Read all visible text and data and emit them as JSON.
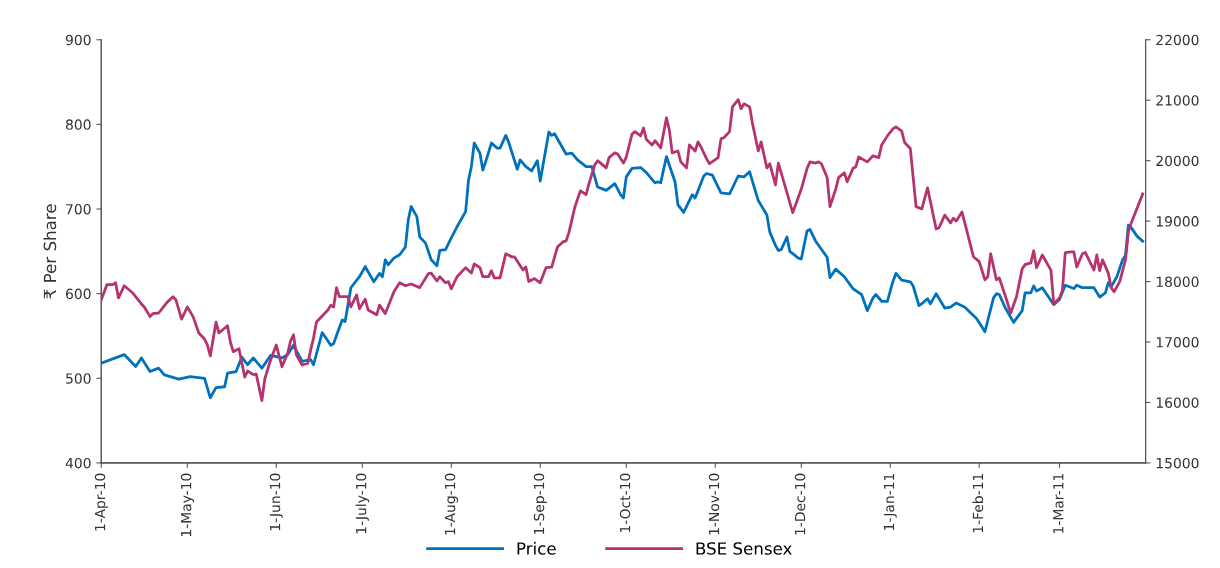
{
  "chart_data": {
    "type": "line",
    "ylabel": "₹ Per Share",
    "legend": "bottom",
    "grid": false,
    "marker": "none",
    "line_style": "solid",
    "xlim": [
      "2010-04-01",
      "2011-03-31"
    ],
    "xticks": [
      {
        "value": "2010-04-01",
        "label": "1-Apr-10"
      },
      {
        "value": "2010-05-01",
        "label": "1-May-10"
      },
      {
        "value": "2010-06-01",
        "label": "1-Jun-10"
      },
      {
        "value": "2010-07-01",
        "label": "1-July-10"
      },
      {
        "value": "2010-08-01",
        "label": "1-Aug-10"
      },
      {
        "value": "2010-09-01",
        "label": "1-Sep-10"
      },
      {
        "value": "2010-10-01",
        "label": "1-Oct-10"
      },
      {
        "value": "2010-11-01",
        "label": "1-Nov-10"
      },
      {
        "value": "2010-12-01",
        "label": "1-Dec-10"
      },
      {
        "value": "2011-01-01",
        "label": "1-Jan-11"
      },
      {
        "value": "2011-02-01",
        "label": "1-Feb-11"
      },
      {
        "value": "2011-03-01",
        "label": "1-Mar-11"
      }
    ],
    "ylim": [
      400,
      900
    ],
    "yticks": [
      400,
      500,
      600,
      700,
      800,
      900
    ],
    "y2lim": [
      15000,
      22000
    ],
    "y2ticks": [
      15000,
      16000,
      17000,
      18000,
      19000,
      20000,
      21000,
      22000
    ],
    "series": [
      {
        "name": "Price",
        "color": "#0072bc",
        "x": [
          "2010-04-01",
          "2010-04-09",
          "2010-04-13",
          "2010-04-15",
          "2010-04-18",
          "2010-04-21",
          "2010-04-23",
          "2010-04-28",
          "2010-05-02",
          "2010-05-07",
          "2010-05-09",
          "2010-05-11",
          "2010-05-14",
          "2010-05-15",
          "2010-05-18",
          "2010-05-20",
          "2010-05-22",
          "2010-05-24",
          "2010-05-27",
          "2010-05-30",
          "2010-06-03",
          "2010-06-05",
          "2010-06-07",
          "2010-06-10",
          "2010-06-13",
          "2010-06-14",
          "2010-06-17",
          "2010-06-20",
          "2010-06-21",
          "2010-06-23",
          "2010-06-24",
          "2010-06-25",
          "2010-06-27",
          "2010-06-30",
          "2010-07-02",
          "2010-07-05",
          "2010-07-07",
          "2010-07-08",
          "2010-07-09",
          "2010-07-10",
          "2010-07-12",
          "2010-07-14",
          "2010-07-16",
          "2010-07-17",
          "2010-07-18",
          "2010-07-20",
          "2010-07-21",
          "2010-07-23",
          "2010-07-25",
          "2010-07-27",
          "2010-07-28",
          "2010-07-30",
          "2010-08-01",
          "2010-08-03",
          "2010-08-06",
          "2010-08-07",
          "2010-08-08",
          "2010-08-09",
          "2010-08-11",
          "2010-08-12",
          "2010-08-13",
          "2010-08-15",
          "2010-08-17",
          "2010-08-18",
          "2010-08-20",
          "2010-08-21",
          "2010-08-24",
          "2010-08-25",
          "2010-08-27",
          "2010-08-29",
          "2010-08-31",
          "2010-09-01",
          "2010-09-04",
          "2010-09-05",
          "2010-09-06",
          "2010-09-10",
          "2010-09-12",
          "2010-09-14",
          "2010-09-17",
          "2010-09-19",
          "2010-09-21",
          "2010-09-24",
          "2010-09-27",
          "2010-09-29",
          "2010-09-30",
          "2010-10-01",
          "2010-10-03",
          "2010-10-06",
          "2010-10-08",
          "2010-10-11",
          "2010-10-12",
          "2010-10-13",
          "2010-10-15",
          "2010-10-18",
          "2010-10-19",
          "2010-10-21",
          "2010-10-24",
          "2010-10-25",
          "2010-10-28",
          "2010-10-29",
          "2010-10-31",
          "2010-11-03",
          "2010-11-06",
          "2010-11-09",
          "2010-11-11",
          "2010-11-13",
          "2010-11-16",
          "2010-11-19",
          "2010-11-20",
          "2010-11-22",
          "2010-11-23",
          "2010-11-24",
          "2010-11-26",
          "2010-11-27",
          "2010-11-30",
          "2010-12-01",
          "2010-12-03",
          "2010-12-04",
          "2010-12-06",
          "2010-12-10",
          "2010-12-11",
          "2010-12-13",
          "2010-12-16",
          "2010-12-19",
          "2010-12-22",
          "2010-12-24",
          "2010-12-26",
          "2010-12-27",
          "2010-12-29",
          "2010-12-31",
          "2011-01-02",
          "2011-01-03",
          "2011-01-05",
          "2011-01-08",
          "2011-01-09",
          "2011-01-11",
          "2011-01-12",
          "2011-01-14",
          "2011-01-15",
          "2011-01-17",
          "2011-01-20",
          "2011-01-22",
          "2011-01-24",
          "2011-01-27",
          "2011-01-31",
          "2011-02-01",
          "2011-02-03",
          "2011-02-06",
          "2011-02-07",
          "2011-02-08",
          "2011-02-10",
          "2011-02-13",
          "2011-02-16",
          "2011-02-17",
          "2011-02-19",
          "2011-02-20",
          "2011-02-21",
          "2011-02-23",
          "2011-02-27",
          "2011-03-01",
          "2011-03-03",
          "2011-03-06",
          "2011-03-07",
          "2011-03-09",
          "2011-03-13",
          "2011-03-15",
          "2011-03-17",
          "2011-03-18",
          "2011-03-19",
          "2011-03-21",
          "2011-03-23",
          "2011-03-24",
          "2011-03-25",
          "2011-03-26",
          "2011-03-28",
          "2011-03-30"
        ],
        "values": [
          518,
          528,
          514,
          524,
          508,
          512,
          504,
          499,
          502,
          500,
          477,
          489,
          490,
          506,
          508,
          525,
          516,
          524,
          512,
          527,
          524,
          528,
          539,
          520,
          522,
          516,
          554,
          539,
          541,
          560,
          569,
          567,
          607,
          620,
          632,
          614,
          624,
          620,
          640,
          634,
          642,
          646,
          655,
          687,
          703,
          691,
          667,
          660,
          640,
          633,
          651,
          652,
          666,
          679,
          697,
          734,
          750,
          778,
          766,
          746,
          756,
          778,
          772,
          772,
          787,
          779,
          747,
          758,
          750,
          745,
          757,
          733,
          791,
          787,
          789,
          765,
          766,
          758,
          750,
          750,
          726,
          722,
          730,
          717,
          713,
          738,
          748,
          749,
          743,
          731,
          732,
          731,
          762,
          732,
          705,
          696,
          717,
          713,
          739,
          742,
          740,
          719,
          718,
          739,
          738,
          744,
          710,
          693,
          673,
          657,
          651,
          652,
          667,
          650,
          642,
          641,
          674,
          676,
          662,
          643,
          619,
          629,
          620,
          606,
          599,
          580,
          595,
          599,
          591,
          591,
          615,
          624,
          616,
          614,
          609,
          586,
          588,
          594,
          588,
          600,
          583,
          584,
          589,
          584,
          571,
          566,
          555,
          595,
          600,
          599,
          584,
          566,
          580,
          601,
          601,
          609,
          603,
          607,
          587,
          593,
          610,
          606,
          610,
          607,
          607,
          596,
          601,
          613,
          608,
          620,
          640,
          645,
          681,
          678,
          668,
          662
        ]
      },
      {
        "name": "BSE Sensex",
        "color": "#b5336e",
        "axis": "y2",
        "x": [
          "2010-04-01",
          "2010-04-03",
          "2010-04-05",
          "2010-04-06",
          "2010-04-07",
          "2010-04-09",
          "2010-04-12",
          "2010-04-15",
          "2010-04-16",
          "2010-04-18",
          "2010-04-19",
          "2010-04-21",
          "2010-04-24",
          "2010-04-26",
          "2010-04-27",
          "2010-04-29",
          "2010-05-01",
          "2010-05-03",
          "2010-05-05",
          "2010-05-07",
          "2010-05-08",
          "2010-05-09",
          "2010-05-11",
          "2010-05-12",
          "2010-05-15",
          "2010-05-16",
          "2010-05-17",
          "2010-05-19",
          "2010-05-21",
          "2010-05-22",
          "2010-05-24",
          "2010-05-25",
          "2010-05-27",
          "2010-05-28",
          "2010-05-30",
          "2010-06-01",
          "2010-06-03",
          "2010-06-05",
          "2010-06-06",
          "2010-06-07",
          "2010-06-08",
          "2010-06-10",
          "2010-06-12",
          "2010-06-13",
          "2010-06-14",
          "2010-06-15",
          "2010-06-18",
          "2010-06-19",
          "2010-06-20",
          "2010-06-21",
          "2010-06-22",
          "2010-06-23",
          "2010-06-26",
          "2010-06-27",
          "2010-06-29",
          "2010-06-30",
          "2010-07-02",
          "2010-07-03",
          "2010-07-06",
          "2010-07-07",
          "2010-07-09",
          "2010-07-12",
          "2010-07-14",
          "2010-07-16",
          "2010-07-18",
          "2010-07-21",
          "2010-07-24",
          "2010-07-25",
          "2010-07-27",
          "2010-07-28",
          "2010-07-30",
          "2010-07-31",
          "2010-08-01",
          "2010-08-03",
          "2010-08-06",
          "2010-08-08",
          "2010-08-09",
          "2010-08-11",
          "2010-08-12",
          "2010-08-14",
          "2010-08-15",
          "2010-08-16",
          "2010-08-18",
          "2010-08-20",
          "2010-08-22",
          "2010-08-23",
          "2010-08-26",
          "2010-08-27",
          "2010-08-28",
          "2010-08-30",
          "2010-09-01",
          "2010-09-03",
          "2010-09-05",
          "2010-09-07",
          "2010-09-09",
          "2010-09-10",
          "2010-09-11",
          "2010-09-13",
          "2010-09-15",
          "2010-09-17",
          "2010-09-18",
          "2010-09-20",
          "2010-09-21",
          "2010-09-24",
          "2010-09-25",
          "2010-09-27",
          "2010-09-28",
          "2010-09-30",
          "2010-10-01",
          "2010-10-03",
          "2010-10-04",
          "2010-10-06",
          "2010-10-07",
          "2010-10-08",
          "2010-10-10",
          "2010-10-11",
          "2010-10-13",
          "2010-10-15",
          "2010-10-16",
          "2010-10-17",
          "2010-10-19",
          "2010-10-20",
          "2010-10-22",
          "2010-10-23",
          "2010-10-25",
          "2010-10-26",
          "2010-10-27",
          "2010-10-29",
          "2010-10-30",
          "2010-11-02",
          "2010-11-03",
          "2010-11-04",
          "2010-11-06",
          "2010-11-07",
          "2010-11-09",
          "2010-11-10",
          "2010-11-11",
          "2010-11-13",
          "2010-11-14",
          "2010-11-16",
          "2010-11-17",
          "2010-11-19",
          "2010-11-20",
          "2010-11-22",
          "2010-11-23",
          "2010-11-26",
          "2010-11-28",
          "2010-11-30",
          "2010-12-01",
          "2010-12-03",
          "2010-12-04",
          "2010-12-06",
          "2010-12-07",
          "2010-12-08",
          "2010-12-10",
          "2010-12-11",
          "2010-12-13",
          "2010-12-14",
          "2010-12-16",
          "2010-12-17",
          "2010-12-19",
          "2010-12-20",
          "2010-12-21",
          "2010-12-24",
          "2010-12-26",
          "2010-12-28",
          "2010-12-29",
          "2010-12-31",
          "2011-01-02",
          "2011-01-03",
          "2011-01-05",
          "2011-01-06",
          "2011-01-08",
          "2011-01-09",
          "2011-01-10",
          "2011-01-12",
          "2011-01-14",
          "2011-01-17",
          "2011-01-18",
          "2011-01-20",
          "2011-01-22",
          "2011-01-23",
          "2011-01-24",
          "2011-01-26",
          "2011-01-27",
          "2011-01-30",
          "2011-02-01",
          "2011-02-03",
          "2011-02-04",
          "2011-02-05",
          "2011-02-07",
          "2011-02-08",
          "2011-02-10",
          "2011-02-12",
          "2011-02-14",
          "2011-02-16",
          "2011-02-17",
          "2011-02-19",
          "2011-02-20",
          "2011-02-21",
          "2011-02-23",
          "2011-02-26",
          "2011-02-27",
          "2011-03-01",
          "2011-03-02",
          "2011-03-03",
          "2011-03-05",
          "2011-03-06",
          "2011-03-07",
          "2011-03-09",
          "2011-03-10",
          "2011-03-13",
          "2011-03-14",
          "2011-03-15",
          "2011-03-16",
          "2011-03-18",
          "2011-03-19",
          "2011-03-20",
          "2011-03-22",
          "2011-03-24",
          "2011-03-25",
          "2011-03-26",
          "2011-03-30"
        ],
        "values": [
          17700,
          17950,
          17950,
          17980,
          17730,
          17930,
          17810,
          17630,
          17580,
          17420,
          17470,
          17480,
          17660,
          17750,
          17700,
          17380,
          17580,
          17420,
          17150,
          17050,
          16950,
          16770,
          17330,
          17150,
          17270,
          17000,
          16840,
          16890,
          16420,
          16520,
          16460,
          16470,
          16030,
          16390,
          16700,
          16950,
          16590,
          16820,
          17020,
          17120,
          16790,
          16620,
          16650,
          16870,
          17070,
          17330,
          17480,
          17530,
          17610,
          17580,
          17900,
          17750,
          17750,
          17580,
          17780,
          17550,
          17710,
          17530,
          17450,
          17610,
          17470,
          17830,
          17980,
          17930,
          17960,
          17900,
          18130,
          18140,
          18010,
          18080,
          17980,
          18000,
          17880,
          18080,
          18230,
          18140,
          18290,
          18230,
          18080,
          18080,
          18180,
          18060,
          18060,
          18460,
          18410,
          18410,
          18190,
          18240,
          18000,
          18050,
          17980,
          18230,
          18240,
          18570,
          18660,
          18670,
          18810,
          19220,
          19500,
          19440,
          19620,
          19930,
          20000,
          19880,
          20050,
          20130,
          20110,
          19960,
          20060,
          20440,
          20480,
          20410,
          20540,
          20350,
          20260,
          20330,
          20210,
          20710,
          20510,
          20130,
          20160,
          19980,
          19880,
          20260,
          20160,
          20310,
          20230,
          20030,
          19950,
          20050,
          20360,
          20380,
          20480,
          20890,
          21010,
          20860,
          20940,
          20890,
          20610,
          20160,
          20310,
          19880,
          19950,
          19600,
          19960,
          19470,
          19140,
          19400,
          19530,
          19870,
          19980,
          19960,
          19980,
          19950,
          19720,
          19240,
          19530,
          19720,
          19800,
          19650,
          19870,
          19900,
          20060,
          19980,
          20080,
          20050,
          20260,
          20410,
          20530,
          20560,
          20490,
          20300,
          20200,
          19720,
          19240,
          19200,
          19550,
          18870,
          18890,
          19100,
          18970,
          19050,
          19000,
          19150,
          18970,
          18410,
          18330,
          18030,
          18080,
          18460,
          18030,
          18060,
          17780,
          17480,
          17750,
          18210,
          18280,
          18310,
          18510,
          18230,
          18440,
          18190,
          17630,
          17730,
          17850,
          18480,
          18490,
          18490,
          18240,
          18460,
          18480,
          18190,
          18440,
          18180,
          18360,
          18140,
          17900,
          17830,
          18000,
          18360,
          18820,
          18970,
          19450
        ]
      }
    ]
  }
}
